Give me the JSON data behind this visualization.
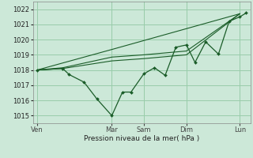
{
  "bg_color": "#cce8d8",
  "grid_color": "#99ccaa",
  "line_color": "#1a5c28",
  "marker_color": "#1a5c28",
  "xlabel": "Pression niveau de la mer( hPa )",
  "ylim": [
    1014.5,
    1022.5
  ],
  "yticks": [
    1015,
    1016,
    1017,
    1018,
    1019,
    1020,
    1021,
    1022
  ],
  "xtick_labels": [
    "Ven",
    "Mar",
    "Sam",
    "Dim",
    "Lun"
  ],
  "xtick_positions": [
    0,
    35,
    50,
    70,
    95
  ],
  "xlim": [
    -2,
    100
  ],
  "series": [
    {
      "x": [
        0,
        12,
        15,
        22,
        28,
        35,
        40,
        44,
        50,
        55,
        60,
        65,
        70,
        74,
        79,
        85,
        90,
        95,
        98
      ],
      "y": [
        1018.0,
        1018.1,
        1017.7,
        1017.2,
        1016.1,
        1015.0,
        1016.55,
        1016.55,
        1017.75,
        1018.15,
        1017.65,
        1019.5,
        1019.65,
        1018.5,
        1019.85,
        1019.05,
        1021.2,
        1021.5,
        1021.75
      ]
    },
    {
      "x": [
        0,
        12,
        35,
        50,
        70,
        95
      ],
      "y": [
        1018.0,
        1018.1,
        1018.6,
        1018.75,
        1019.0,
        1021.7
      ]
    },
    {
      "x": [
        0,
        12,
        35,
        50,
        70,
        95
      ],
      "y": [
        1018.0,
        1018.15,
        1018.85,
        1019.0,
        1019.25,
        1021.7
      ]
    },
    {
      "x": [
        0,
        35,
        95
      ],
      "y": [
        1018.0,
        1019.35,
        1021.7
      ]
    }
  ]
}
